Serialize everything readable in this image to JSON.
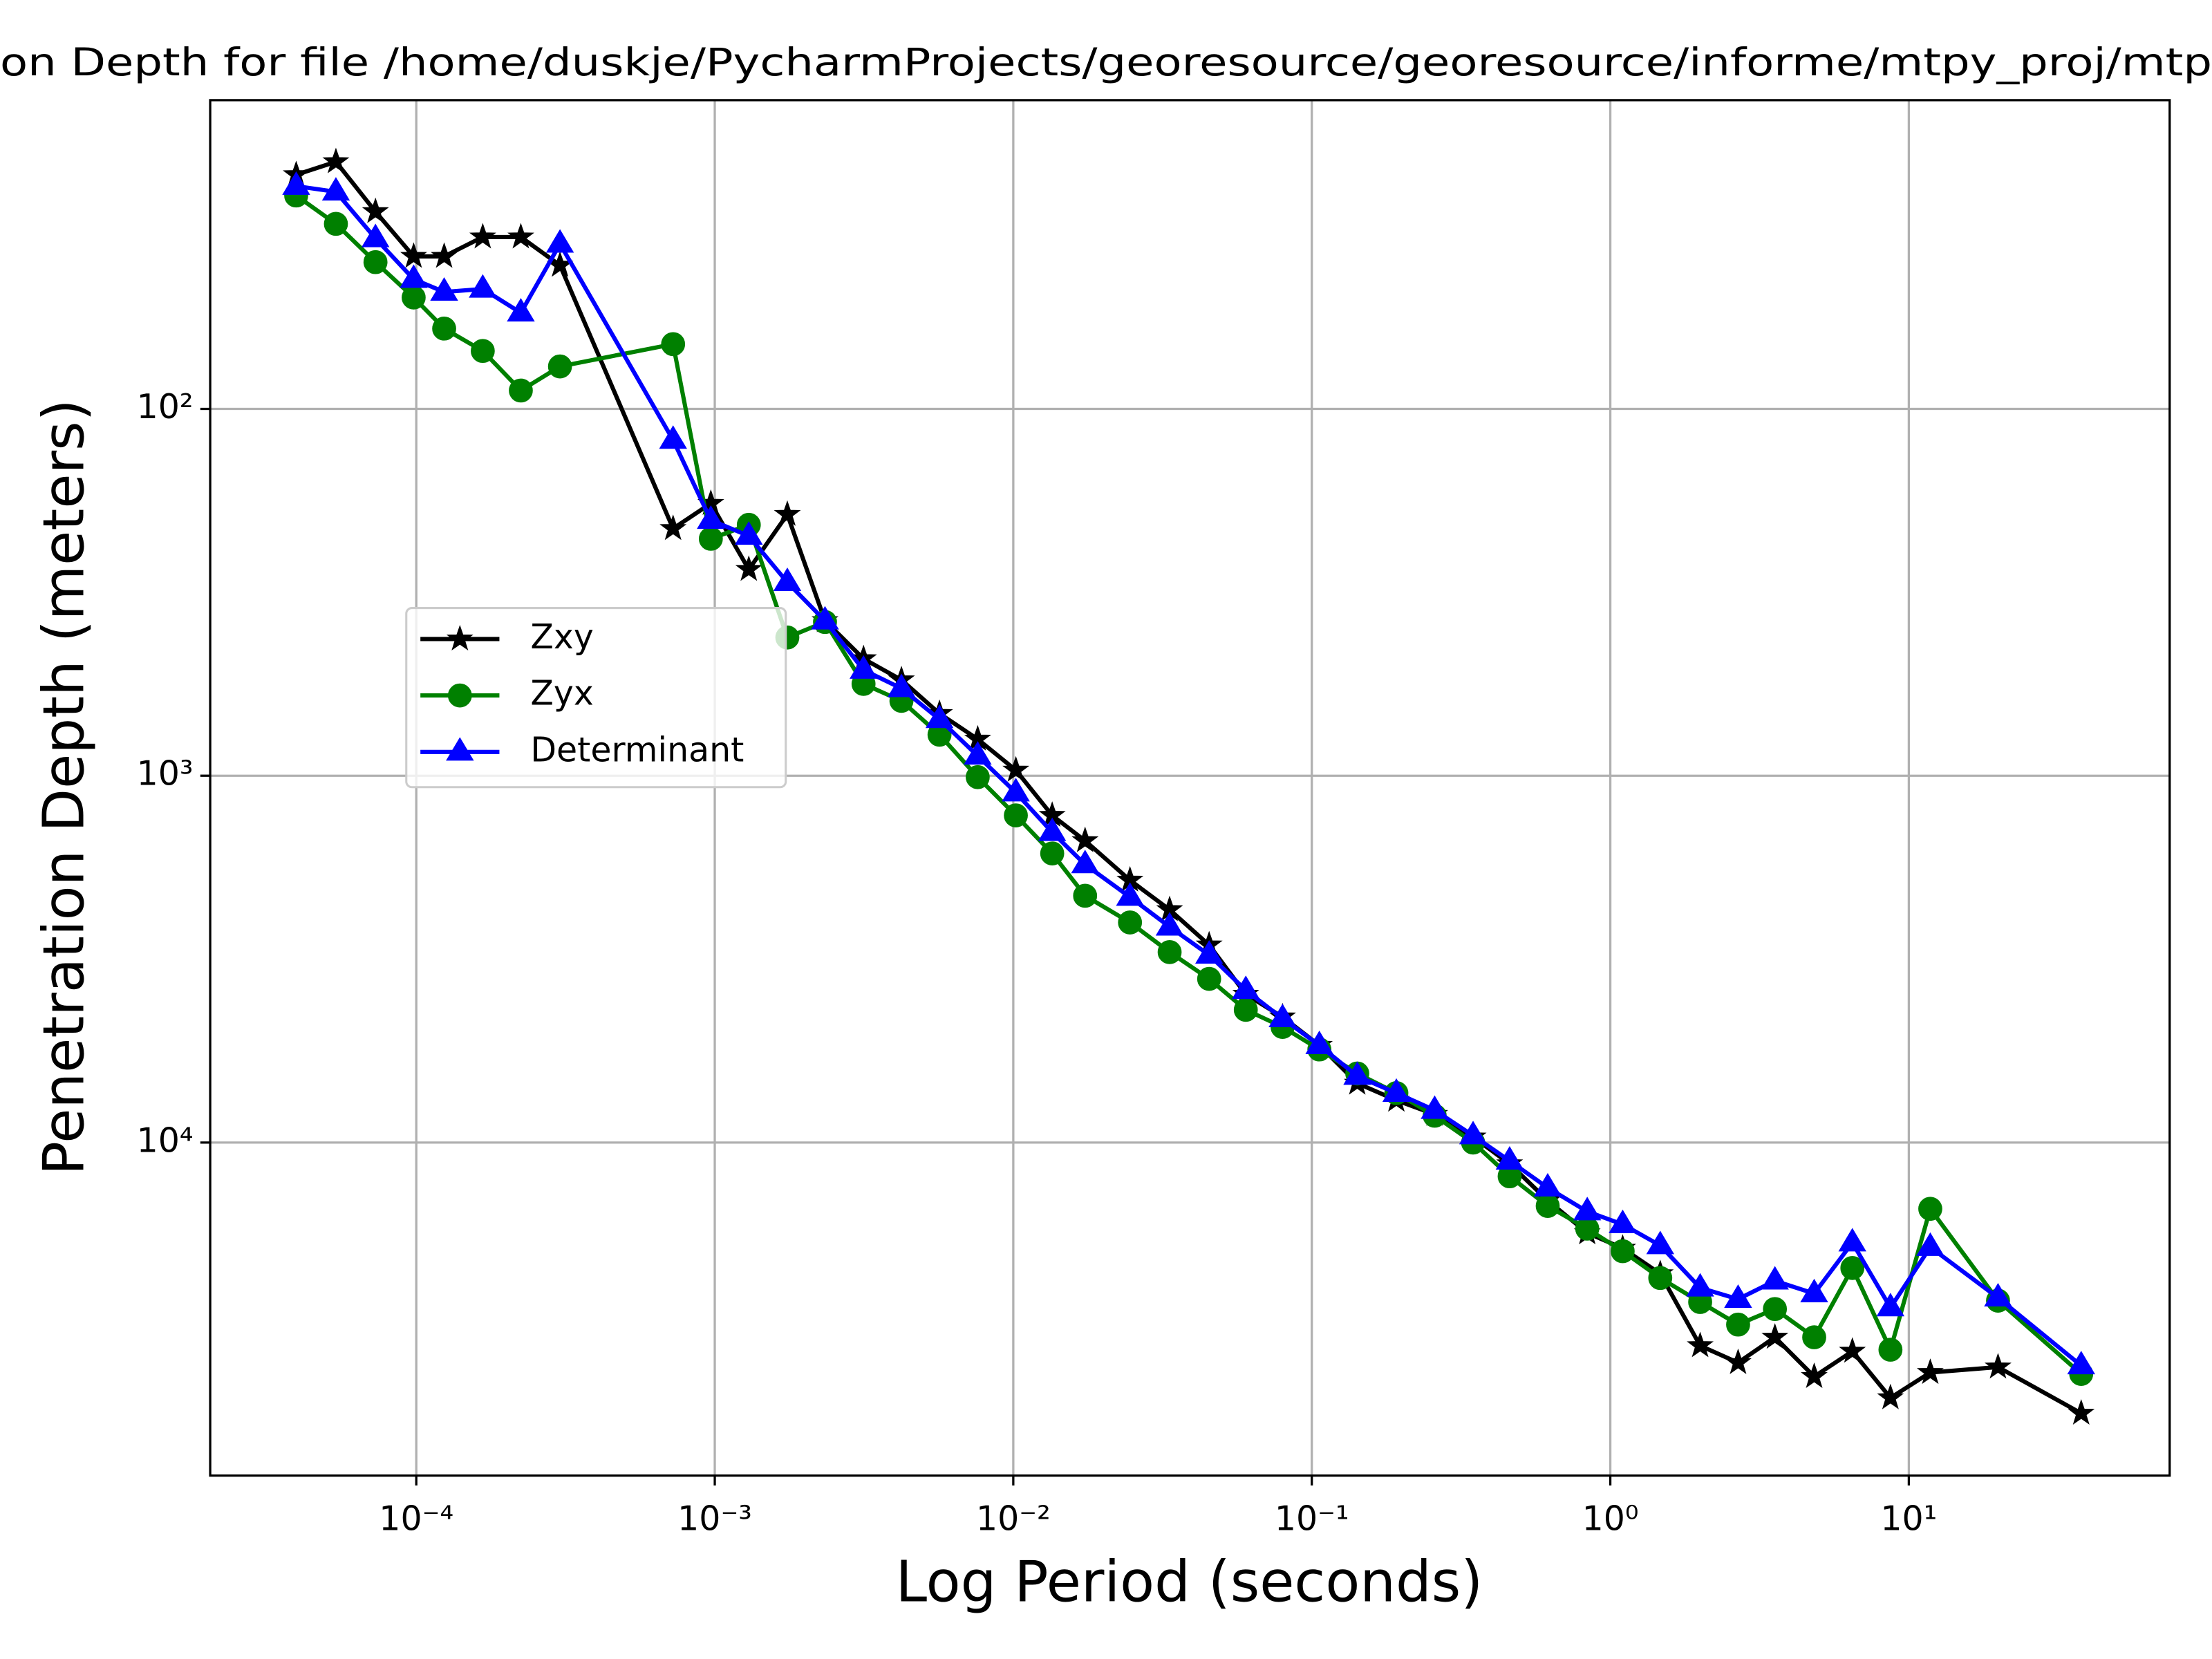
{
  "chart_data": {
    "type": "line",
    "title": "on Depth for file /home/duskje/PycharmProjects/georesource/georesource/informe/mtpy_proj/mtp",
    "x_label": "Log Period (seconds)",
    "y_label": "Penetration Depth (meters)",
    "x_scale": "log",
    "y_scale": "log",
    "grid": true,
    "legend": "center left",
    "xlim": [
      2.04e-05,
      74.8
    ],
    "ylim": [
      80900,
      14.4
    ],
    "xticks": [
      {
        "value": 0.0001,
        "label": "10⁻⁴"
      },
      {
        "value": 0.001,
        "label": "10⁻³"
      },
      {
        "value": 0.01,
        "label": "10⁻²"
      },
      {
        "value": 0.1,
        "label": "10⁻¹"
      },
      {
        "value": 1,
        "label": "10⁰"
      },
      {
        "value": 10,
        "label": "10¹"
      }
    ],
    "yticks": [
      {
        "value": 100,
        "label": "10²"
      },
      {
        "value": 1000,
        "label": "10³"
      },
      {
        "value": 10000,
        "label": "10⁴"
      }
    ],
    "x": [
      3.96e-05,
      5.38e-05,
      7.3e-05,
      9.8e-05,
      0.000124,
      0.000167,
      0.000224,
      0.000303,
      0.000725,
      0.00097,
      0.0013,
      0.00175,
      0.00234,
      0.00315,
      0.00422,
      0.00566,
      0.0076,
      0.0102,
      0.0135,
      0.0174,
      0.0246,
      0.0334,
      0.0453,
      0.0601,
      0.0798,
      0.106,
      0.142,
      0.192,
      0.258,
      0.347,
      0.46,
      0.617,
      0.837,
      1.1,
      1.47,
      2.0,
      2.68,
      3.56,
      4.82,
      6.47,
      8.68,
      11.8,
      19.9,
      37.8
    ],
    "series": [
      {
        "name": "Zxy",
        "color": "#000000",
        "marker": "star",
        "values": [
          23.0,
          21.2,
          29.0,
          38.4,
          38.4,
          34.0,
          34.0,
          40.6,
          212,
          181,
          274,
          194,
          378,
          480,
          548,
          677,
          795,
          966,
          1283,
          1504,
          1927,
          2319,
          2894,
          3945,
          4547,
          5433,
          6890,
          7670,
          8380,
          9660,
          11430,
          14390,
          17630,
          19420,
          22790,
          35800,
          39810,
          33950,
          43450,
          37070,
          49650,
          42360,
          40930,
          54700
        ]
      },
      {
        "name": "Zyx",
        "color": "#008000",
        "marker": "circle",
        "values": [
          26.2,
          31.3,
          39.8,
          49.7,
          60.4,
          69.5,
          89.1,
          76.6,
          66.6,
          226,
          207,
          420,
          381,
          562,
          625,
          773,
          1009,
          1283,
          1629,
          2124,
          2512,
          3026,
          3580,
          4347,
          4840,
          5575,
          6483,
          7330,
          8450,
          10000,
          12360,
          14890,
          17170,
          19780,
          23400,
          27210,
          31350,
          28430,
          33950,
          21980,
          36710,
          15160,
          26980,
          42740
        ]
      },
      {
        "name": "Determinant",
        "color": "#0000ff",
        "marker": "triangle",
        "values": [
          24.7,
          25.6,
          34.3,
          44.3,
          48.0,
          47.1,
          54.7,
          35.5,
          121.6,
          201,
          222,
          297,
          378,
          515,
          578,
          702,
          883,
          1112,
          1426,
          1746,
          2142,
          2582,
          3080,
          3845,
          4590,
          5433,
          6590,
          7330,
          8160,
          9570,
          11220,
          13280,
          15420,
          16710,
          19080,
          24890,
          26720,
          23820,
          25800,
          18750,
          28180,
          19280,
          26490,
          40550
        ]
      }
    ]
  }
}
